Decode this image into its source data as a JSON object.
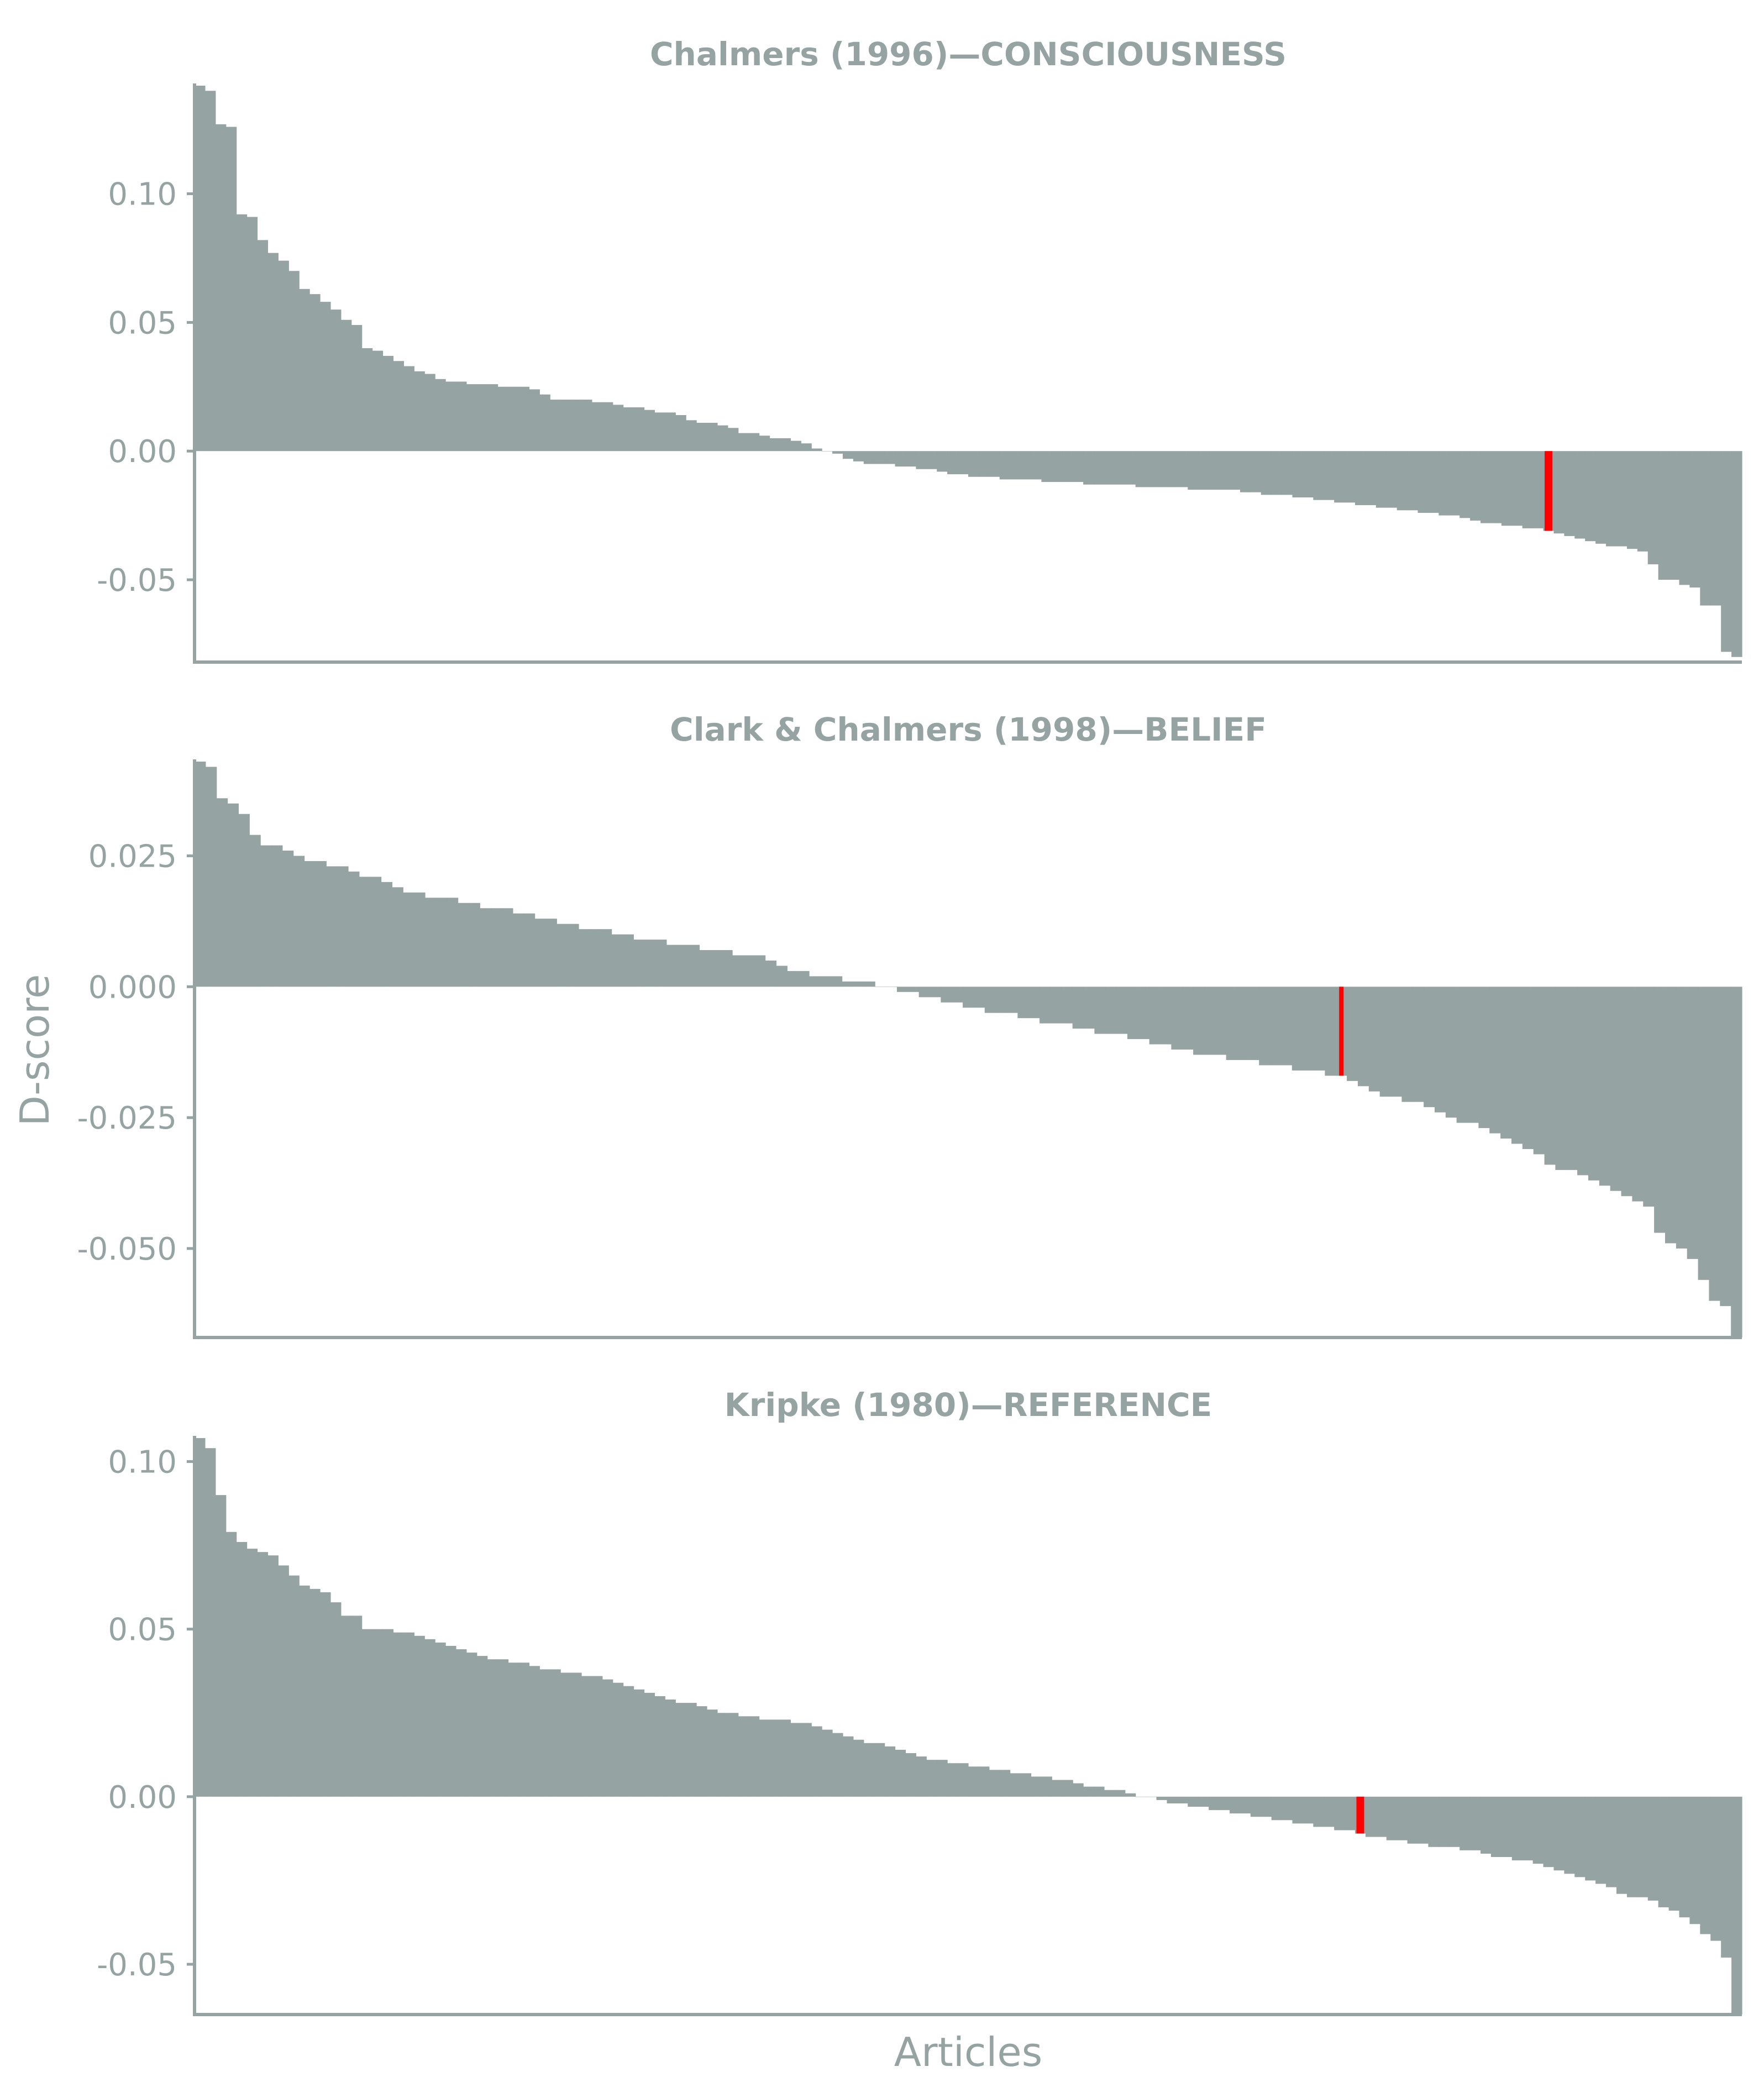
{
  "chart_data": {
    "type": "bar",
    "xlabel": "Articles",
    "ylabel": "D-score",
    "bar_color": "#95a3a2",
    "highlight_color": "#ff0000",
    "panels": [
      {
        "title": "Chalmers (1996)—CONSCIOUSNESS",
        "ylim": [
          -0.082,
          0.142
        ],
        "yticks": [
          0.1,
          0.05,
          0.0,
          -0.05
        ],
        "ytick_labels": [
          "0.10",
          "0.05",
          "0.00",
          "-0.05"
        ],
        "values": [
          0.142,
          0.14,
          0.127,
          0.126,
          0.092,
          0.091,
          0.082,
          0.077,
          0.074,
          0.07,
          0.063,
          0.061,
          0.058,
          0.055,
          0.051,
          0.049,
          0.04,
          0.039,
          0.037,
          0.035,
          0.033,
          0.031,
          0.03,
          0.028,
          0.027,
          0.027,
          0.026,
          0.026,
          0.026,
          0.025,
          0.025,
          0.025,
          0.024,
          0.022,
          0.02,
          0.02,
          0.02,
          0.02,
          0.019,
          0.019,
          0.018,
          0.017,
          0.017,
          0.016,
          0.015,
          0.015,
          0.014,
          0.012,
          0.011,
          0.011,
          0.01,
          0.009,
          0.007,
          0.007,
          0.006,
          0.005,
          0.005,
          0.004,
          0.003,
          0.001,
          0.0,
          -0.001,
          -0.003,
          -0.004,
          -0.005,
          -0.005,
          -0.005,
          -0.006,
          -0.006,
          -0.007,
          -0.007,
          -0.008,
          -0.009,
          -0.009,
          -0.01,
          -0.01,
          -0.01,
          -0.011,
          -0.011,
          -0.011,
          -0.011,
          -0.012,
          -0.012,
          -0.012,
          -0.012,
          -0.013,
          -0.013,
          -0.013,
          -0.013,
          -0.013,
          -0.014,
          -0.014,
          -0.014,
          -0.014,
          -0.014,
          -0.015,
          -0.015,
          -0.015,
          -0.015,
          -0.015,
          -0.016,
          -0.016,
          -0.017,
          -0.017,
          -0.017,
          -0.018,
          -0.018,
          -0.019,
          -0.019,
          -0.02,
          -0.02,
          -0.021,
          -0.021,
          -0.022,
          -0.022,
          -0.023,
          -0.023,
          -0.024,
          -0.024,
          -0.025,
          -0.025,
          -0.026,
          -0.027,
          -0.028,
          -0.028,
          -0.029,
          -0.029,
          -0.03,
          -0.03,
          -0.031,
          -0.032,
          -0.033,
          -0.034,
          -0.035,
          -0.036,
          -0.037,
          -0.037,
          -0.038,
          -0.039,
          -0.044,
          -0.05,
          -0.05,
          -0.052,
          -0.053,
          -0.06,
          -0.06,
          -0.078,
          -0.08
        ],
        "highlight_index": 129
      },
      {
        "title": "Clark & Chalmers (1998)—BELIEF",
        "ylim": [
          -0.067,
          0.043
        ],
        "yticks": [
          0.025,
          0.0,
          -0.025,
          -0.05
        ],
        "ytick_labels": [
          "0.025",
          "0.000",
          "-0.025",
          "-0.050"
        ],
        "values": [
          0.043,
          0.042,
          0.036,
          0.035,
          0.033,
          0.029,
          0.027,
          0.027,
          0.026,
          0.025,
          0.024,
          0.024,
          0.023,
          0.023,
          0.022,
          0.021,
          0.021,
          0.02,
          0.019,
          0.018,
          0.018,
          0.017,
          0.017,
          0.017,
          0.016,
          0.016,
          0.015,
          0.015,
          0.015,
          0.014,
          0.014,
          0.013,
          0.013,
          0.012,
          0.012,
          0.011,
          0.011,
          0.011,
          0.01,
          0.01,
          0.009,
          0.009,
          0.009,
          0.008,
          0.008,
          0.008,
          0.007,
          0.007,
          0.007,
          0.006,
          0.006,
          0.006,
          0.005,
          0.004,
          0.003,
          0.003,
          0.002,
          0.002,
          0.002,
          0.001,
          0.001,
          0.001,
          0.0,
          0.0,
          -0.001,
          -0.001,
          -0.002,
          -0.002,
          -0.003,
          -0.003,
          -0.004,
          -0.004,
          -0.005,
          -0.005,
          -0.005,
          -0.006,
          -0.006,
          -0.007,
          -0.007,
          -0.007,
          -0.008,
          -0.008,
          -0.009,
          -0.009,
          -0.009,
          -0.01,
          -0.01,
          -0.011,
          -0.011,
          -0.012,
          -0.012,
          -0.013,
          -0.013,
          -0.013,
          -0.014,
          -0.014,
          -0.014,
          -0.015,
          -0.015,
          -0.015,
          -0.016,
          -0.016,
          -0.016,
          -0.017,
          -0.017,
          -0.018,
          -0.019,
          -0.02,
          -0.021,
          -0.021,
          -0.022,
          -0.022,
          -0.023,
          -0.024,
          -0.025,
          -0.026,
          -0.026,
          -0.027,
          -0.028,
          -0.029,
          -0.03,
          -0.031,
          -0.032,
          -0.034,
          -0.035,
          -0.035,
          -0.036,
          -0.037,
          -0.038,
          -0.039,
          -0.04,
          -0.041,
          -0.042,
          -0.047,
          -0.049,
          -0.05,
          -0.052,
          -0.056,
          -0.06,
          -0.061,
          -0.067
        ],
        "highlight_index": 104
      },
      {
        "title": "Kripke (1980)—REFERENCE",
        "ylim": [
          -0.065,
          0.107
        ],
        "yticks": [
          0.1,
          0.05,
          0.0,
          -0.05
        ],
        "ytick_labels": [
          "0.10",
          "0.05",
          "0.00",
          "-0.05"
        ],
        "values": [
          0.107,
          0.104,
          0.09,
          0.079,
          0.076,
          0.074,
          0.073,
          0.072,
          0.069,
          0.066,
          0.063,
          0.062,
          0.061,
          0.058,
          0.054,
          0.054,
          0.05,
          0.05,
          0.05,
          0.049,
          0.049,
          0.048,
          0.047,
          0.046,
          0.045,
          0.044,
          0.043,
          0.042,
          0.041,
          0.041,
          0.04,
          0.04,
          0.039,
          0.038,
          0.038,
          0.037,
          0.037,
          0.036,
          0.036,
          0.035,
          0.034,
          0.033,
          0.032,
          0.031,
          0.03,
          0.029,
          0.028,
          0.028,
          0.027,
          0.026,
          0.025,
          0.025,
          0.024,
          0.024,
          0.023,
          0.023,
          0.023,
          0.022,
          0.022,
          0.021,
          0.02,
          0.019,
          0.018,
          0.017,
          0.016,
          0.016,
          0.015,
          0.014,
          0.013,
          0.012,
          0.011,
          0.011,
          0.01,
          0.01,
          0.009,
          0.009,
          0.008,
          0.008,
          0.007,
          0.007,
          0.006,
          0.006,
          0.005,
          0.005,
          0.004,
          0.003,
          0.003,
          0.002,
          0.002,
          0.001,
          0.0,
          0.0,
          -0.001,
          -0.002,
          -0.002,
          -0.003,
          -0.003,
          -0.004,
          -0.004,
          -0.005,
          -0.005,
          -0.006,
          -0.006,
          -0.007,
          -0.007,
          -0.008,
          -0.008,
          -0.009,
          -0.009,
          -0.01,
          -0.01,
          -0.011,
          -0.012,
          -0.012,
          -0.013,
          -0.013,
          -0.014,
          -0.014,
          -0.015,
          -0.015,
          -0.015,
          -0.016,
          -0.016,
          -0.017,
          -0.018,
          -0.018,
          -0.019,
          -0.019,
          -0.02,
          -0.021,
          -0.022,
          -0.023,
          -0.024,
          -0.025,
          -0.026,
          -0.027,
          -0.029,
          -0.03,
          -0.03,
          -0.031,
          -0.033,
          -0.034,
          -0.036,
          -0.038,
          -0.041,
          -0.043,
          -0.048,
          -0.065
        ],
        "highlight_index": 111
      }
    ]
  }
}
